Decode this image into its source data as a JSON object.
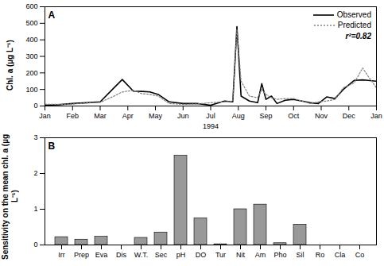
{
  "chart_data": [
    {
      "type": "line",
      "title": "A",
      "xlabel": "1994",
      "ylabel": "Chl. a (µg L⁻¹)",
      "x": [
        0,
        0.5,
        1,
        1.5,
        2,
        2.5,
        2.8,
        3.2,
        3.5,
        3.8,
        4.1,
        4.5,
        5,
        5.5,
        6,
        6.5,
        6.8,
        6.95,
        7.1,
        7.4,
        7.7,
        7.85,
        8,
        8.2,
        8.4,
        8.7,
        9,
        9.3,
        9.6,
        9.9,
        10.2,
        10.5,
        10.8,
        11.2,
        11.5,
        11.7,
        12
      ],
      "series": [
        {
          "name": "Observed",
          "color": "#000000",
          "line_style": "solid",
          "values": [
            5,
            8,
            15,
            20,
            25,
            110,
            160,
            90,
            88,
            85,
            70,
            25,
            15,
            15,
            5,
            30,
            25,
            480,
            60,
            30,
            20,
            135,
            40,
            60,
            15,
            35,
            40,
            30,
            20,
            15,
            55,
            45,
            100,
            155,
            158,
            155,
            150
          ]
        },
        {
          "name": "Predicted",
          "color": "#808080",
          "line_style": "dotted",
          "values": [
            10,
            10,
            12,
            18,
            22,
            60,
            85,
            95,
            75,
            70,
            60,
            15,
            10,
            12,
            20,
            25,
            30,
            465,
            150,
            60,
            50,
            100,
            70,
            50,
            40,
            45,
            45,
            30,
            15,
            25,
            30,
            40,
            110,
            140,
            230,
            180,
            110
          ]
        }
      ],
      "xlim": [
        0,
        12
      ],
      "xticks": [
        {
          "value": 0,
          "label": "Jan"
        },
        {
          "value": 1,
          "label": "Feb"
        },
        {
          "value": 2,
          "label": "Mar"
        },
        {
          "value": 3,
          "label": "Apr"
        },
        {
          "value": 4,
          "label": "May"
        },
        {
          "value": 5,
          "label": "Jun"
        },
        {
          "value": 6,
          "label": "Jul"
        },
        {
          "value": 7,
          "label": "Aug"
        },
        {
          "value": 8,
          "label": "Sep"
        },
        {
          "value": 9,
          "label": "Oct"
        },
        {
          "value": 10,
          "label": "Nov"
        },
        {
          "value": 11,
          "label": "Dec"
        },
        {
          "value": 12,
          "label": "Jan"
        }
      ],
      "ylim": [
        0,
        600
      ],
      "yticks": [
        0,
        100,
        200,
        300,
        400,
        500,
        600
      ],
      "legend": "top-right",
      "annotation": "r²=0.82"
    },
    {
      "type": "bar",
      "title": "B",
      "ylabel": "Sensitivity on the mean chl. a (µg L⁻¹)",
      "categories": [
        "Irr",
        "Prep",
        "Eva",
        "Dis",
        "W.T.",
        "Sec",
        "pH",
        "DO",
        "Tur",
        "Nit",
        "Am",
        "Pho",
        "Sil",
        "Ro",
        "Cla",
        "Co"
      ],
      "values": [
        0.22,
        0.15,
        0.23,
        0,
        0.2,
        0.35,
        2.5,
        0.75,
        0.02,
        1.0,
        1.13,
        0.05,
        0.57,
        0,
        0,
        0
      ],
      "color": "#999999",
      "ylim": [
        0,
        3
      ],
      "yticks": [
        0,
        1,
        2,
        3
      ]
    }
  ]
}
